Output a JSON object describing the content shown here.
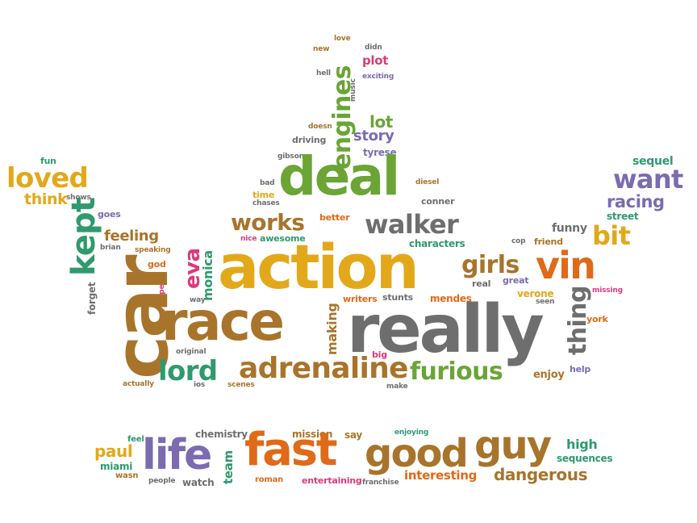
{
  "palette": {
    "orange": "#e06a17",
    "gold": "#e3a81a",
    "green": "#6aa535",
    "teal": "#2e9a6e",
    "brown": "#a8742b",
    "gray": "#6e6e6e",
    "purple": "#7b6bb0",
    "pink": "#d93b7b"
  },
  "words": {
    "action": "action",
    "really": "really",
    "race": "race",
    "car": "car",
    "deal": "deal",
    "fast": "fast",
    "good": "good",
    "guy": "guy",
    "life": "life",
    "vin": "vin",
    "adrenaline": "adrenaline",
    "furious": "furious",
    "walker": "walker",
    "works": "works",
    "lord": "lord",
    "girls": "girls",
    "thing": "thing",
    "engines": "engines",
    "loved": "loved",
    "kept": "kept",
    "want": "want",
    "racing": "racing",
    "sequel": "sequel",
    "bit": "bit",
    "think": "think",
    "fun": "fun",
    "shows": "shows",
    "goes": "goes",
    "feeling": "feeling",
    "brian": "brian",
    "speaking": "speaking",
    "god": "god",
    "forget": "forget",
    "speed": "speed",
    "eva": "eva",
    "monica": "monica",
    "original": "original",
    "actually": "actually",
    "ios": "ios",
    "way": "way",
    "nice": "nice",
    "awesome": "awesome",
    "time": "time",
    "chases": "chases",
    "bad": "bad",
    "better": "better",
    "gibson": "gibson",
    "driving": "driving",
    "doesn": "doesn",
    "story": "story",
    "lot": "lot",
    "tyrese": "tyrese",
    "diesel": "diesel",
    "conner": "conner",
    "characters": "characters",
    "new": "new",
    "love": "love",
    "didn": "didn",
    "plot": "plot",
    "hell": "hell",
    "music": "music",
    "exciting": "exciting",
    "making": "making",
    "writers": "writers",
    "stunts": "stunts",
    "mendes": "mendes",
    "big": "big",
    "scenes": "scenes",
    "make": "make",
    "real": "real",
    "great": "great",
    "verone": "verone",
    "seen": "seen",
    "cop": "cop",
    "friend": "friend",
    "funny": "funny",
    "street": "street",
    "missing": "missing",
    "york": "york",
    "enjoy": "enjoy",
    "help": "help",
    "chemistry": "chemistry",
    "mission": "mission",
    "say": "say",
    "enjoying": "enjoying",
    "paul": "paul",
    "feel": "feel",
    "miami": "miami",
    "wasn": "wasn",
    "people": "people",
    "watch": "watch",
    "team": "team",
    "roman": "roman",
    "entertaining": "entertaining",
    "franchise": "franchise",
    "interesting": "interesting",
    "dangerous": "dangerous",
    "high": "high",
    "sequences": "sequences"
  }
}
